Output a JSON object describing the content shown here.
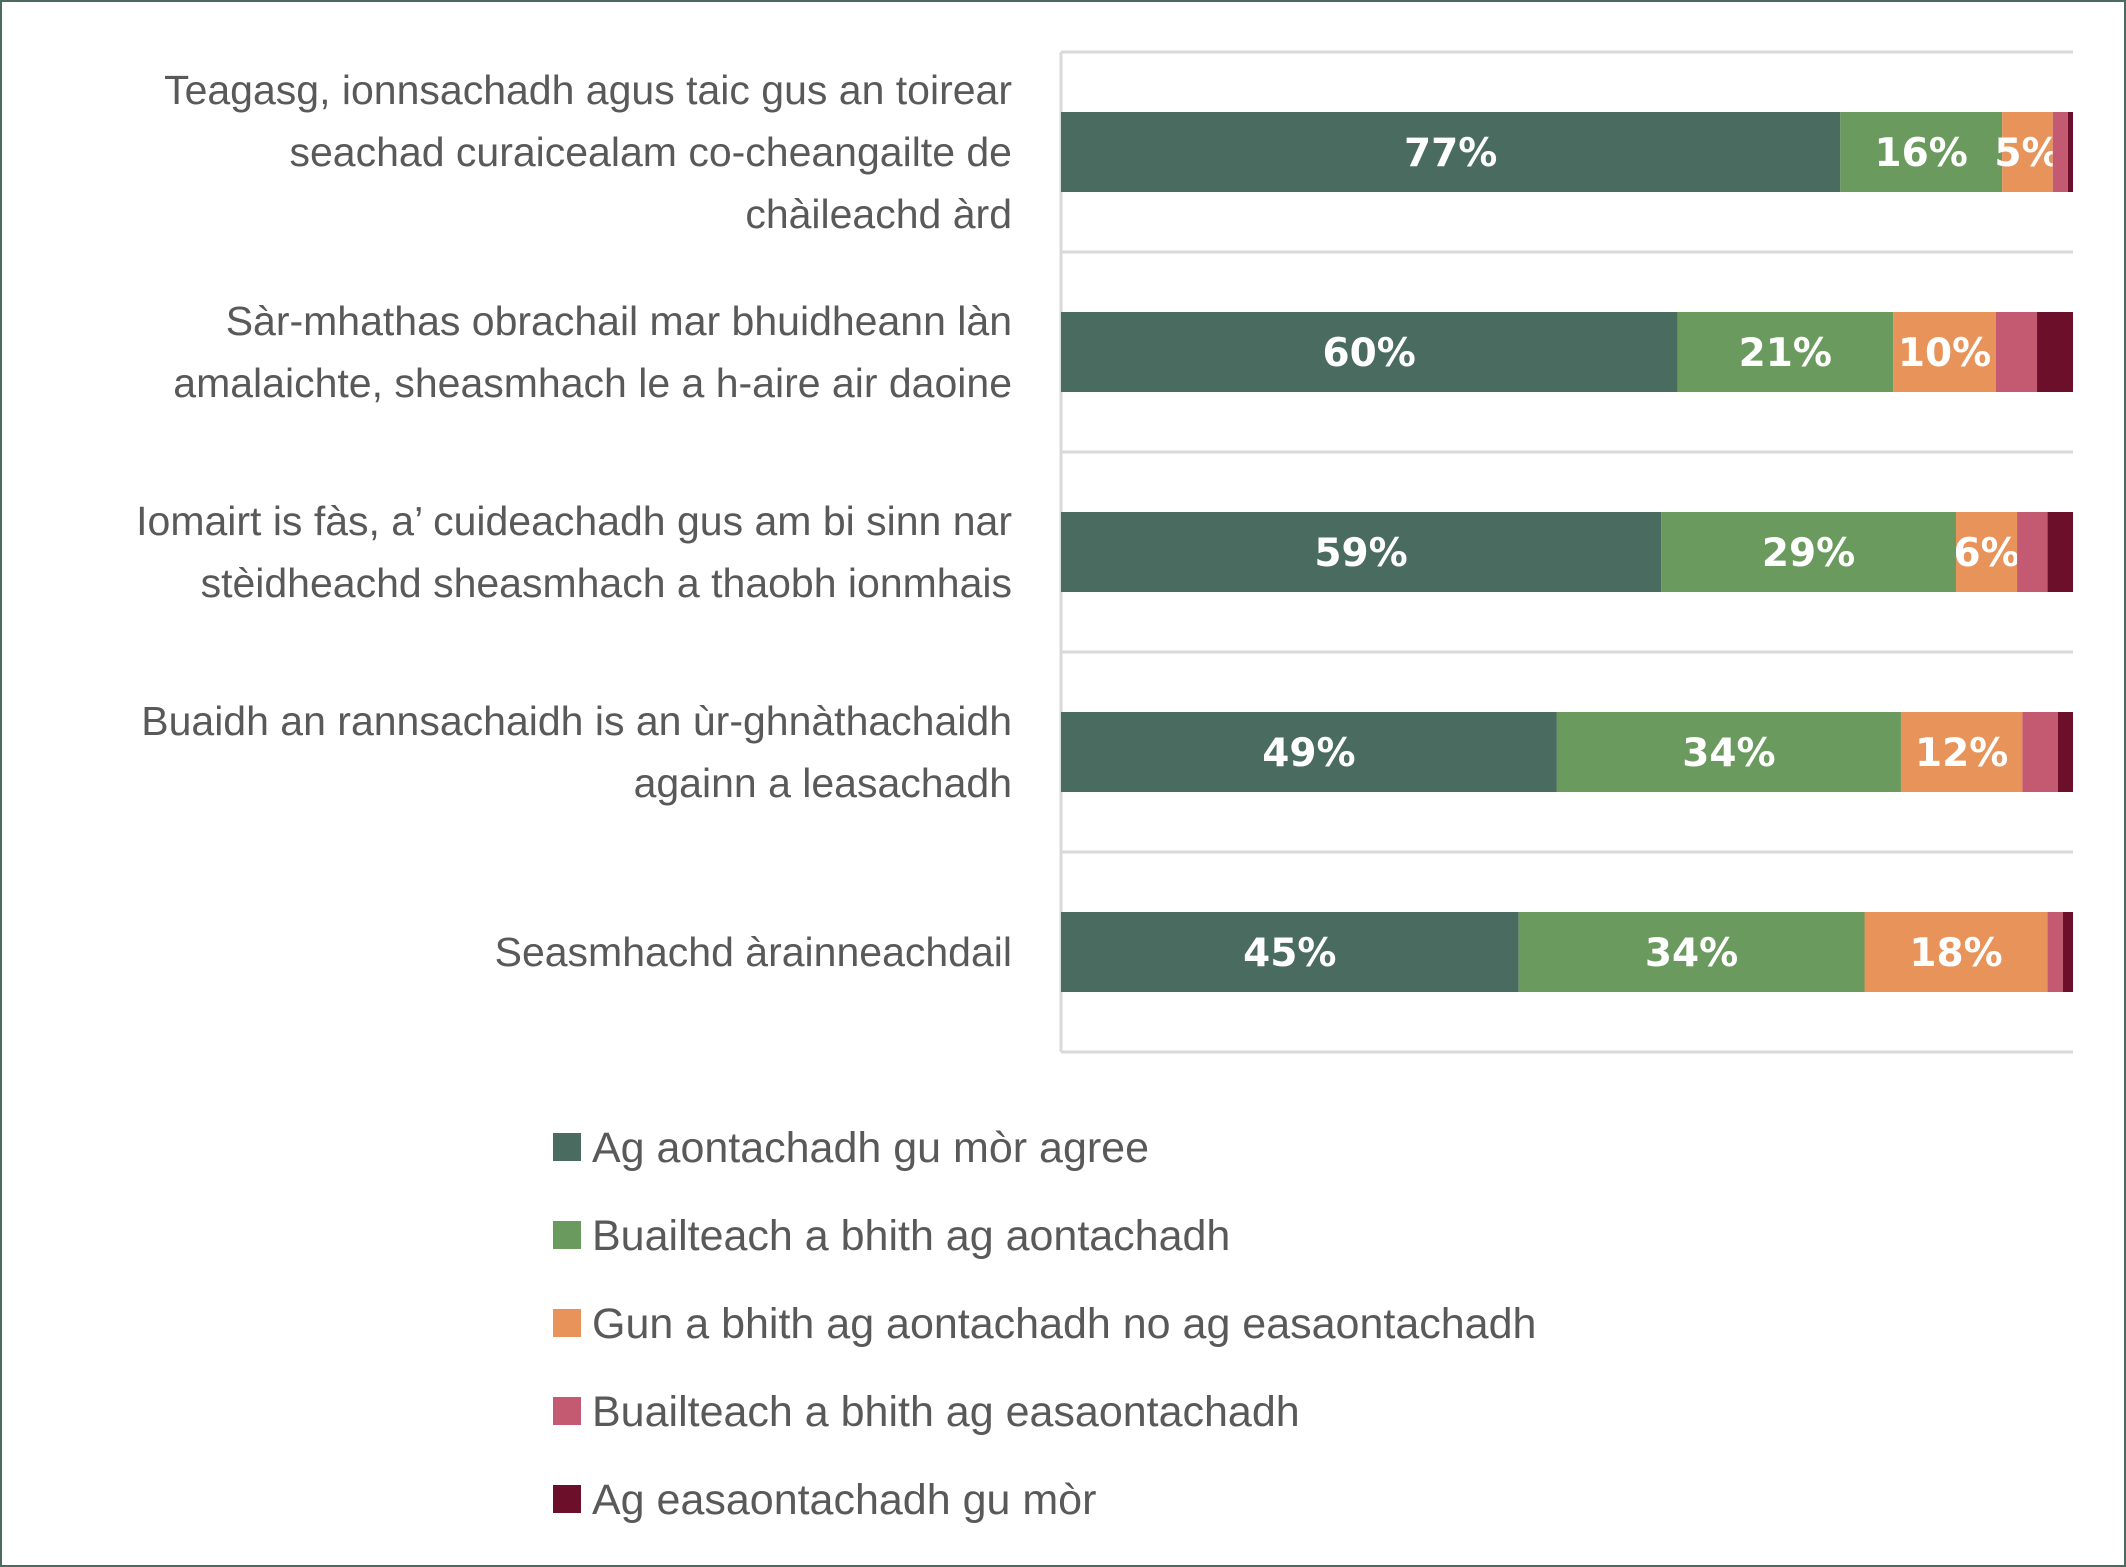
{
  "colors": {
    "frame": "#4a6b5f",
    "gridline": "#d9d9d9",
    "category_text": "#595959",
    "value_text": "#ffffff"
  },
  "chart_data": {
    "type": "bar",
    "orientation": "horizontal",
    "stacked": true,
    "percent_scale": true,
    "grid": true,
    "legend_placement": "bottom",
    "categories": [
      [
        "Teagasg, ionnsachadh agus taic gus an toirear",
        "seachad curaicealam co-cheangailte de",
        "chàileachd àrd"
      ],
      [
        "Sàr-mhathas obrachail mar bhuidheann làn",
        "amalaichte, sheasmhach le a h-aire air daoine"
      ],
      [
        "Iomairt is fàs, a’ cuideachadh gus am bi sinn nar",
        "stèidheachd sheasmhach a thaobh ionmhais"
      ],
      [
        "Buaidh an rannsachaidh is an ùr-ghnàthachaidh",
        "againn a leasachadh"
      ],
      [
        "Seasmhachd àrainneachdail"
      ]
    ],
    "series": [
      {
        "name": "Ag aontachadh gu mòr agree",
        "color": "#4a6b5f",
        "values": [
          77,
          60,
          59,
          49,
          45
        ],
        "labels": [
          "77%",
          "60%",
          "59%",
          "49%",
          "45%"
        ]
      },
      {
        "name": "Buailteach a bhith ag aontachadh",
        "color": "#6a9a5e",
        "values": [
          16,
          21,
          29,
          34,
          34
        ],
        "labels": [
          "16%",
          "21%",
          "29%",
          "34%",
          "34%"
        ]
      },
      {
        "name": "Gun a bhith ag aontachadh no ag easaontachadh",
        "color": "#e8935a",
        "values": [
          5,
          10,
          6,
          12,
          18
        ],
        "labels": [
          "5%",
          "10%",
          "6%",
          "12%",
          "18%"
        ]
      },
      {
        "name": "Buailteach a bhith ag easaontachadh",
        "color": "#c45a72",
        "values": [
          1.5,
          4,
          3,
          3.5,
          1.5
        ],
        "labels": [
          "",
          "",
          "",
          "",
          ""
        ]
      },
      {
        "name": "Ag easaontachadh gu mòr",
        "color": "#6b0f2a",
        "values": [
          0.5,
          3.5,
          2.5,
          1.5,
          1
        ],
        "labels": [
          "",
          "",
          "",
          "",
          ""
        ]
      }
    ]
  }
}
